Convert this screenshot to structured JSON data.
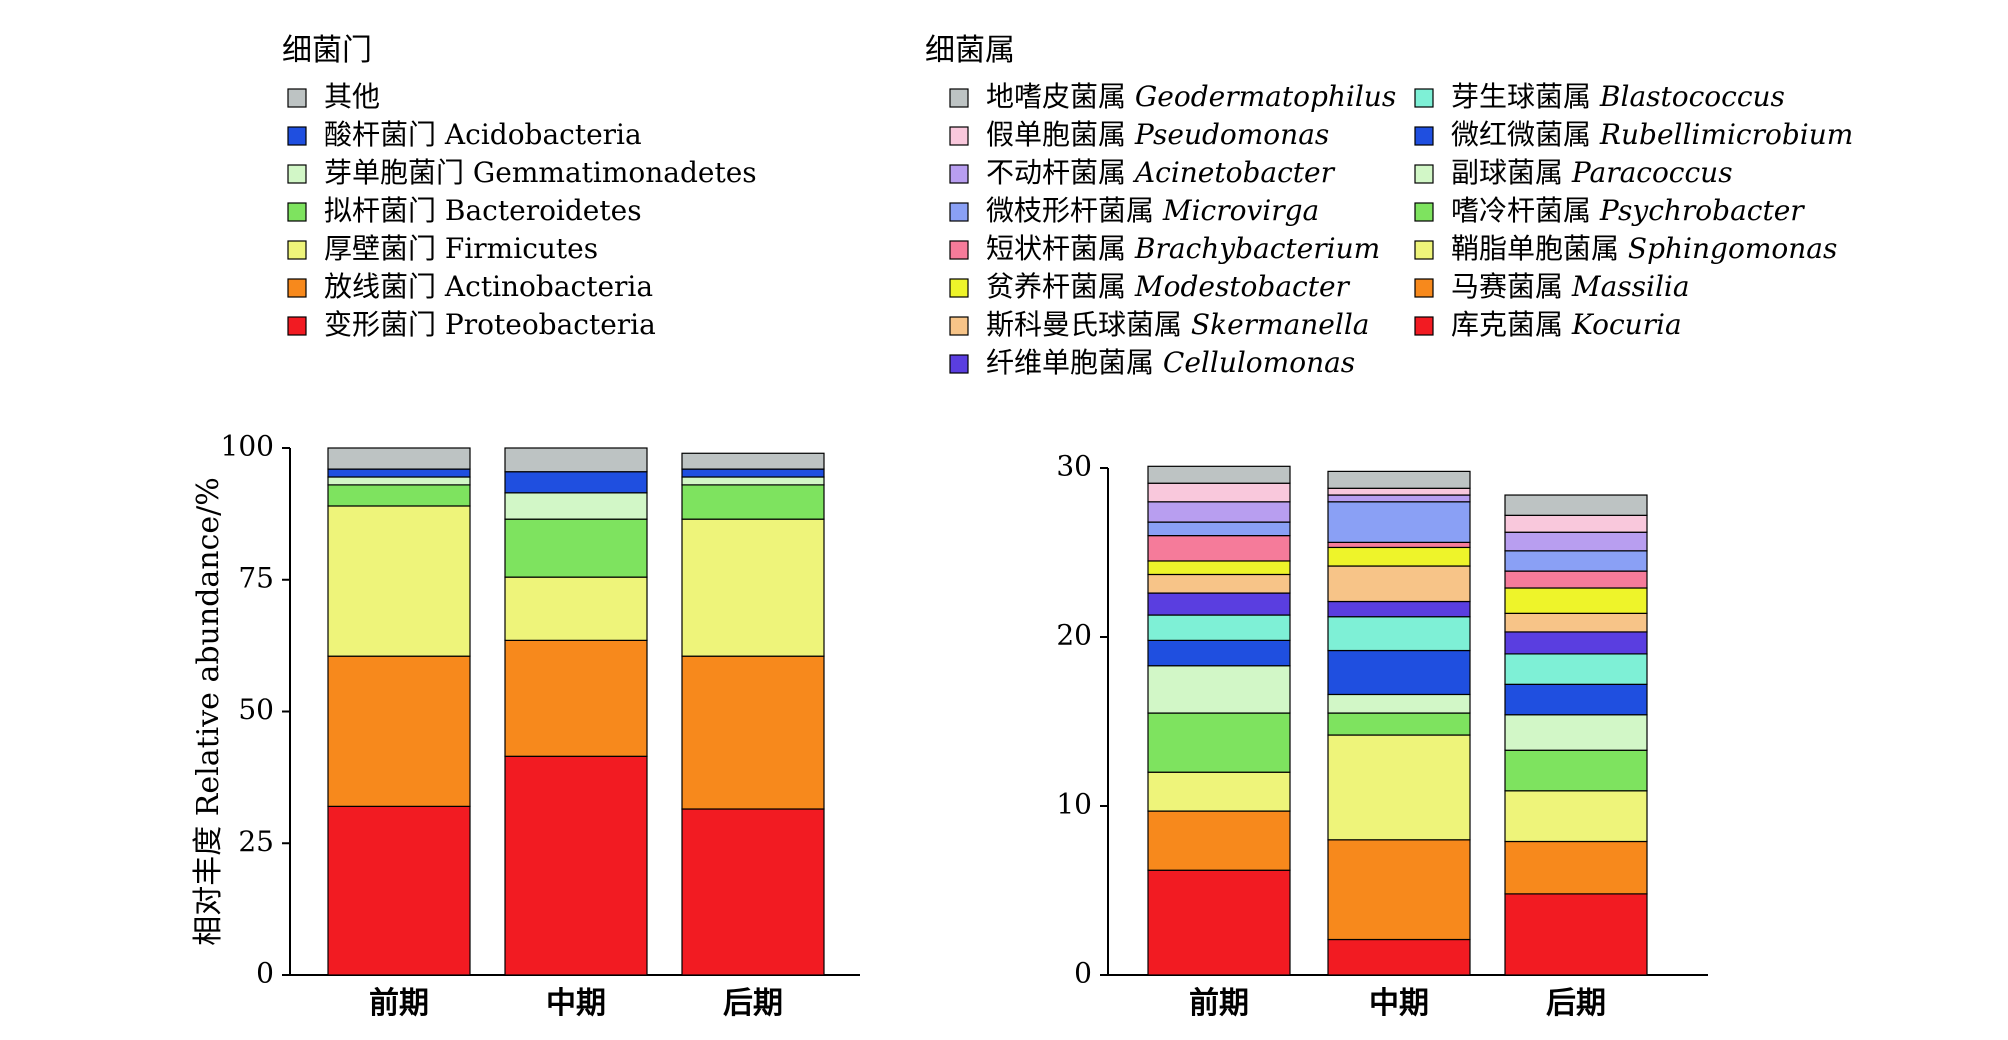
{
  "chart_data": [
    {
      "type": "bar",
      "stacked": true,
      "legend_title": "细菌门",
      "ylabel": "相对丰度 Relative abundance/%",
      "categories": [
        "前期",
        "中期",
        "后期"
      ],
      "ylim": [
        0,
        100
      ],
      "yticks": [
        "0",
        "25",
        "50",
        "75",
        "100"
      ],
      "grid": false,
      "legend_position": "top",
      "series": [
        {
          "cn": "变形菌门",
          "latin": "Proteobacteria",
          "italic": false,
          "color": "#f21b22",
          "values": [
            32.0,
            41.5,
            31.5
          ]
        },
        {
          "cn": "放线菌门",
          "latin": "Actinobacteria",
          "italic": false,
          "color": "#f7891c",
          "values": [
            28.5,
            22.0,
            29.0
          ]
        },
        {
          "cn": "厚壁菌门",
          "latin": "Firmicutes",
          "italic": false,
          "color": "#eef47a",
          "values": [
            28.5,
            12.0,
            26.0
          ]
        },
        {
          "cn": "拟杆菌门",
          "latin": "Bacteroidetes",
          "italic": false,
          "color": "#7ee35f",
          "values": [
            4.0,
            11.0,
            6.5
          ]
        },
        {
          "cn": "芽单胞菌门",
          "latin": "Gemmatimonadetes",
          "italic": false,
          "color": "#d2f7c7",
          "values": [
            1.5,
            5.0,
            1.5
          ]
        },
        {
          "cn": "酸杆菌门",
          "latin": "Acidobacteria",
          "italic": false,
          "color": "#1f4fe0",
          "values": [
            1.5,
            4.0,
            1.5
          ]
        },
        {
          "cn": "其他",
          "latin": "",
          "italic": false,
          "color": "#bdc3c3",
          "values": [
            4.0,
            4.5,
            3.0
          ]
        }
      ]
    },
    {
      "type": "bar",
      "stacked": true,
      "legend_title": "细菌属",
      "ylabel": "",
      "categories": [
        "前期",
        "中期",
        "后期"
      ],
      "ylim": [
        0,
        30
      ],
      "yticks": [
        "0",
        "10",
        "20",
        "30"
      ],
      "grid": false,
      "legend_position": "top",
      "series": [
        {
          "cn": "库克菌属",
          "latin": "Kocuria",
          "italic": true,
          "color": "#f21b22",
          "values": [
            6.2,
            2.1,
            4.8
          ]
        },
        {
          "cn": "马赛菌属",
          "latin": "Massilia",
          "italic": true,
          "color": "#f7891c",
          "values": [
            3.5,
            5.9,
            3.1
          ]
        },
        {
          "cn": "鞘脂单胞菌属",
          "latin": "Sphingomonas",
          "italic": true,
          "color": "#eef47a",
          "values": [
            2.3,
            6.2,
            3.0
          ]
        },
        {
          "cn": "嗜冷杆菌属",
          "latin": "Psychrobacter",
          "italic": true,
          "color": "#7ee35f",
          "values": [
            3.5,
            1.3,
            2.4
          ]
        },
        {
          "cn": "副球菌属",
          "latin": "Paracoccus",
          "italic": true,
          "color": "#d2f7c7",
          "values": [
            2.8,
            1.1,
            2.1
          ]
        },
        {
          "cn": "微红微菌属",
          "latin": "Rubellimicrobium",
          "italic": true,
          "color": "#1f4fe0",
          "values": [
            1.5,
            2.6,
            1.8
          ]
        },
        {
          "cn": "芽生球菌属",
          "latin": "Blastococcus",
          "italic": true,
          "color": "#7ef0d6",
          "values": [
            1.5,
            2.0,
            1.8
          ]
        },
        {
          "cn": "纤维单胞菌属",
          "latin": "Cellulomonas",
          "italic": true,
          "color": "#5a3ee0",
          "values": [
            1.3,
            0.9,
            1.3
          ]
        },
        {
          "cn": "斯科曼氏球菌属",
          "latin": "Skermanella",
          "italic": true,
          "color": "#f7c488",
          "values": [
            1.1,
            2.1,
            1.1
          ]
        },
        {
          "cn": "贫养杆菌属",
          "latin": "Modestobacter",
          "italic": true,
          "color": "#eef42a",
          "values": [
            0.8,
            1.1,
            1.5
          ]
        },
        {
          "cn": "短状杆菌属",
          "latin": "Brachybacterium",
          "italic": true,
          "color": "#f57b9a",
          "values": [
            1.5,
            0.3,
            1.0
          ]
        },
        {
          "cn": "微枝形杆菌属",
          "latin": "Microvirga",
          "italic": true,
          "color": "#8aa0f5",
          "values": [
            0.8,
            2.4,
            1.2
          ]
        },
        {
          "cn": "不动杆菌属",
          "latin": "Acinetobacter",
          "italic": true,
          "color": "#b89ef0",
          "values": [
            1.2,
            0.4,
            1.1
          ]
        },
        {
          "cn": "假单胞菌属",
          "latin": "Pseudomonas",
          "italic": true,
          "color": "#f9c8dc",
          "values": [
            1.1,
            0.4,
            1.0
          ]
        },
        {
          "cn": "地嗜皮菌属",
          "latin": "Geodermatophilus",
          "italic": true,
          "color": "#bdc3c3",
          "values": [
            1.0,
            1.0,
            1.2
          ]
        }
      ]
    }
  ]
}
